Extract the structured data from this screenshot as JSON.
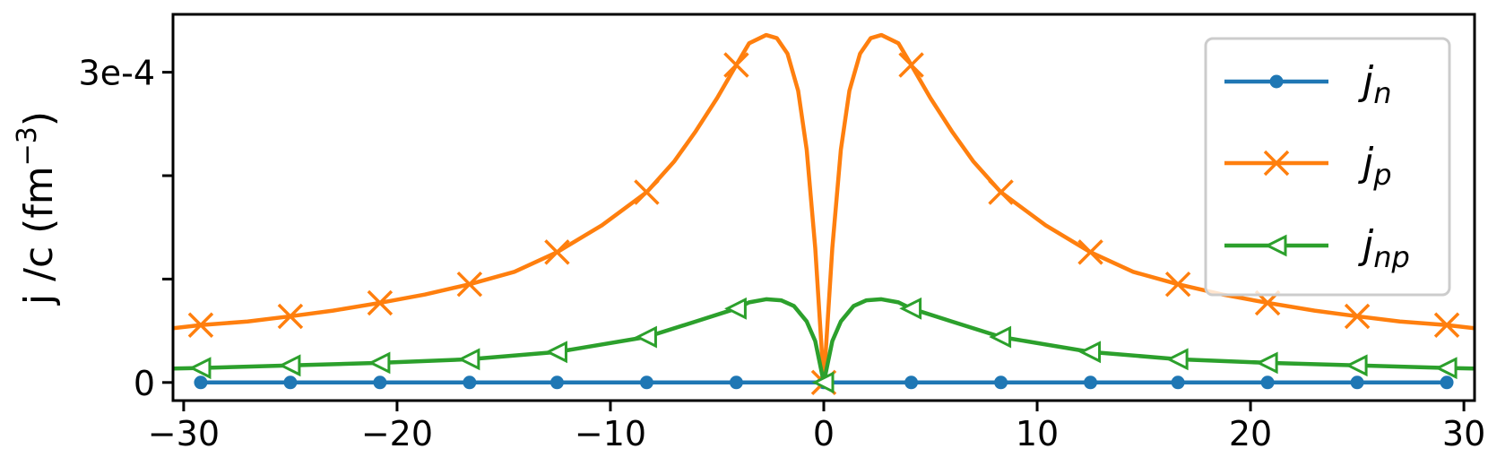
{
  "chart_data": {
    "type": "line",
    "xlim": [
      -30.5,
      30.5
    ],
    "ylim": [
      -1.75e-05,
      0.000356
    ],
    "x_ticks": [
      -30,
      -20,
      -10,
      0,
      10,
      20,
      30
    ],
    "x_tick_labels": [
      "−30",
      "−20",
      "−10",
      "0",
      "10",
      "20",
      "30"
    ],
    "y_ticks": [
      0,
      0.0001,
      0.0002,
      0.0003
    ],
    "y_tick_labels": [
      "0",
      "",
      "",
      "3e-4"
    ],
    "ylabel": {
      "main": "j /c (fm",
      "sup": "−3",
      "close": ")"
    },
    "legend_position": "upper-right",
    "grid": false,
    "series": [
      {
        "name": "j",
        "name_sub": "n",
        "color": "#1f77b4",
        "marker": "circle",
        "x": [
          -29.2,
          -25.0,
          -20.8,
          -16.6,
          -12.5,
          -8.3,
          -4.1,
          0.0,
          4.1,
          8.3,
          12.5,
          16.6,
          20.8,
          25.0,
          29.2
        ],
        "y": [
          0,
          0,
          0,
          0,
          0,
          0,
          0,
          0,
          0,
          0,
          0,
          0,
          0,
          0,
          0
        ],
        "marker_x": [
          -29.2,
          -25.0,
          -20.8,
          -16.6,
          -12.5,
          -8.3,
          -4.1,
          0.0,
          4.1,
          8.3,
          12.5,
          16.6,
          20.8,
          25.0,
          29.2
        ],
        "marker_y": [
          0,
          0,
          0,
          0,
          0,
          0,
          0,
          0,
          0,
          0,
          0,
          0,
          0,
          0,
          0
        ]
      },
      {
        "name": "j",
        "name_sub": "p",
        "color": "#ff7f0e",
        "marker": "x",
        "x": [
          -30.5,
          -29.2,
          -27.0,
          -25.0,
          -23.0,
          -20.8,
          -18.7,
          -16.6,
          -14.5,
          -12.5,
          -10.4,
          -8.3,
          -7.0,
          -6.0,
          -5.0,
          -4.1,
          -3.5,
          -2.7,
          -2.2,
          -1.7,
          -1.2,
          -0.8,
          -0.4,
          0.0,
          0.4,
          0.8,
          1.2,
          1.7,
          2.2,
          2.7,
          3.5,
          4.1,
          5.0,
          6.0,
          7.0,
          8.3,
          10.4,
          12.5,
          14.5,
          16.6,
          18.7,
          20.8,
          23.0,
          25.0,
          27.0,
          29.2,
          30.5
        ],
        "y": [
          5.25e-05,
          5.55e-05,
          5.9e-05,
          6.4e-05,
          6.95e-05,
          7.7e-05,
          8.5e-05,
          9.5e-05,
          0.000107,
          0.000126,
          0.000152,
          0.000184,
          0.000214,
          0.000243,
          0.000275,
          0.000307,
          0.000328,
          0.000336,
          0.000333,
          0.000318,
          0.000282,
          0.000225,
          0.00013,
          0.0,
          0.00013,
          0.000225,
          0.000282,
          0.000318,
          0.000333,
          0.000336,
          0.000328,
          0.000307,
          0.000275,
          0.000243,
          0.000214,
          0.000184,
          0.000152,
          0.000126,
          0.000107,
          9.5e-05,
          8.5e-05,
          7.7e-05,
          6.95e-05,
          6.4e-05,
          5.9e-05,
          5.55e-05,
          5.25e-05
        ],
        "marker_x": [
          -29.2,
          -25.0,
          -20.8,
          -16.6,
          -12.5,
          -8.3,
          -4.1,
          0.0,
          4.1,
          8.3,
          12.5,
          16.6,
          20.8,
          25.0,
          29.2
        ],
        "marker_y": [
          5.55e-05,
          6.4e-05,
          7.7e-05,
          9.5e-05,
          0.000126,
          0.000184,
          0.000307,
          0.0,
          0.000307,
          0.000184,
          0.000126,
          9.5e-05,
          7.7e-05,
          6.4e-05,
          5.55e-05
        ]
      },
      {
        "name": "j",
        "name_sub": "np",
        "color": "#2ca02c",
        "marker": "triangle-left",
        "x": [
          -30.5,
          -29.2,
          -25.0,
          -20.8,
          -16.6,
          -12.5,
          -8.3,
          -6.0,
          -4.1,
          -3.5,
          -2.7,
          -2.0,
          -1.4,
          -0.8,
          -0.4,
          0.0,
          0.4,
          0.8,
          1.4,
          2.0,
          2.7,
          3.5,
          4.1,
          6.0,
          8.3,
          12.5,
          16.6,
          20.8,
          25.0,
          29.2,
          30.5
        ],
        "y": [
          1.35e-05,
          1.4e-05,
          1.65e-05,
          1.9e-05,
          2.25e-05,
          2.95e-05,
          4.4e-05,
          5.9e-05,
          7.15e-05,
          7.75e-05,
          8.05e-05,
          7.95e-05,
          7.4e-05,
          5.9e-05,
          4e-05,
          0.0,
          4e-05,
          5.9e-05,
          7.4e-05,
          7.95e-05,
          8.05e-05,
          7.75e-05,
          7.15e-05,
          5.9e-05,
          4.4e-05,
          2.95e-05,
          2.25e-05,
          1.9e-05,
          1.65e-05,
          1.4e-05,
          1.35e-05
        ],
        "marker_x": [
          -29.2,
          -25.0,
          -20.8,
          -16.6,
          -12.5,
          -8.3,
          -4.1,
          0.0,
          4.1,
          8.3,
          12.5,
          16.6,
          20.8,
          25.0,
          29.2
        ],
        "marker_y": [
          1.4e-05,
          1.65e-05,
          1.9e-05,
          2.25e-05,
          2.95e-05,
          4.4e-05,
          7.15e-05,
          0.0,
          7.15e-05,
          4.4e-05,
          2.95e-05,
          2.25e-05,
          1.9e-05,
          1.65e-05,
          1.4e-05
        ]
      }
    ]
  }
}
